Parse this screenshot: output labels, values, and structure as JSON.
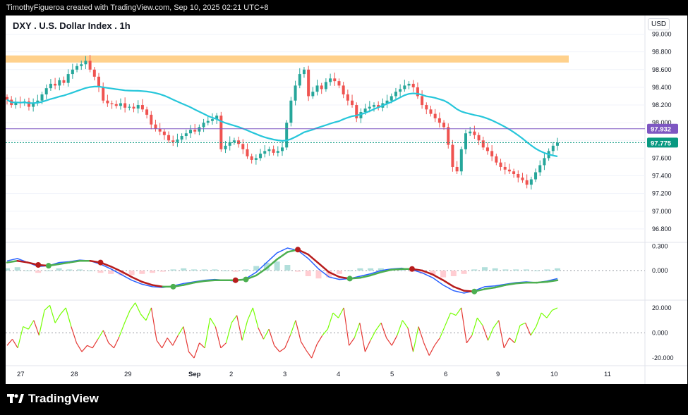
{
  "header": {
    "credit": "TimothyFigueroa created with TradingView.com, Sep 10, 2025 02:21 UTC+8"
  },
  "chart_title": "DXY . U.S. Dollar Index . 1h",
  "currency": "USD",
  "brand": "TradingView",
  "colors": {
    "up": "#26a69a",
    "down": "#ef5350",
    "ma": "#26c6da",
    "zone": "#ffcc80",
    "price_line": "#7e57c2",
    "last_price": "#089981",
    "macd_line": "#2962ff",
    "signal_fast": "#4caf50",
    "signal_slow": "#b71c1c",
    "osc_up": "#76ff03",
    "osc_down": "#e53935"
  },
  "chart_data": [
    {
      "type": "candlestick",
      "title": "DXY . U.S. Dollar Index . 1h",
      "xlabel": "",
      "ylabel": "USD",
      "ylim": [
        96.6,
        99.1
      ],
      "y_ticks": [
        "99.000",
        "98.800",
        "98.600",
        "98.400",
        "98.200",
        "98.000",
        "97.800",
        "97.600",
        "97.400",
        "97.200",
        "97.000",
        "96.800"
      ],
      "x_ticks": [
        "27",
        "28",
        "29",
        "Sep",
        "2",
        "3",
        "4",
        "5",
        "6",
        "9",
        "10",
        "11"
      ],
      "resistance_zone": [
        98.68,
        98.76
      ],
      "price_markers": [
        {
          "label": "97.932",
          "value": 97.932,
          "kind": "ma"
        },
        {
          "label": "97.775",
          "value": 97.775,
          "kind": "last"
        }
      ],
      "closes": [
        98.26,
        98.2,
        98.23,
        98.22,
        98.24,
        98.18,
        98.22,
        98.25,
        98.32,
        98.39,
        98.44,
        98.42,
        98.48,
        98.45,
        98.55,
        98.6,
        98.64,
        98.66,
        98.7,
        98.6,
        98.52,
        98.4,
        98.25,
        98.22,
        98.21,
        98.19,
        98.22,
        98.17,
        98.18,
        98.16,
        98.2,
        98.15,
        98.09,
        97.98,
        97.93,
        97.9,
        97.86,
        97.8,
        97.78,
        97.81,
        97.85,
        97.88,
        97.92,
        97.9,
        97.95,
        98.0,
        98.02,
        98.04,
        98.08,
        97.7,
        97.74,
        97.78,
        97.8,
        97.76,
        97.7,
        97.62,
        97.58,
        97.6,
        97.65,
        97.68,
        97.7,
        97.66,
        97.68,
        97.72,
        98.0,
        98.25,
        98.42,
        98.55,
        98.6,
        98.3,
        98.35,
        98.42,
        98.38,
        98.46,
        98.5,
        98.47,
        98.42,
        98.32,
        98.25,
        98.2,
        98.05,
        98.12,
        98.16,
        98.18,
        98.2,
        98.17,
        98.22,
        98.25,
        98.3,
        98.35,
        98.38,
        98.42,
        98.44,
        98.4,
        98.3,
        98.2,
        98.15,
        98.1,
        98.05,
        98.0,
        97.95,
        97.75,
        97.5,
        97.45,
        97.7,
        97.88,
        97.9,
        97.86,
        97.8,
        97.72,
        97.68,
        97.62,
        97.55,
        97.5,
        97.47,
        97.45,
        97.42,
        97.38,
        97.35,
        97.3,
        97.36,
        97.44,
        97.52,
        97.6,
        97.68,
        97.74,
        97.775
      ]
    },
    {
      "type": "line",
      "title": "MACD",
      "ylim": [
        -0.35,
        0.35
      ],
      "y_ticks": [
        "0.300",
        "0.000"
      ],
      "series": [
        {
          "name": "MACD",
          "values": [
            0.12,
            0.15,
            0.1,
            0.05,
            0.06,
            0.1,
            0.11,
            0.13,
            0.12,
            0.08,
            0.02,
            -0.05,
            -0.12,
            -0.17,
            -0.2,
            -0.21,
            -0.19,
            -0.16,
            -0.14,
            -0.12,
            -0.11,
            -0.12,
            -0.13,
            -0.1,
            -0.02,
            0.1,
            0.22,
            0.28,
            0.25,
            0.15,
            0.02,
            -0.08,
            -0.11,
            -0.1,
            -0.07,
            -0.04,
            0.0,
            0.02,
            0.03,
            0.01,
            -0.03,
            -0.09,
            -0.18,
            -0.25,
            -0.28,
            -0.25,
            -0.2,
            -0.19,
            -0.17,
            -0.15,
            -0.14,
            -0.15,
            -0.13,
            -0.1
          ]
        },
        {
          "name": "Signal",
          "values": [
            0.1,
            0.12,
            0.1,
            0.07,
            0.06,
            0.08,
            0.1,
            0.12,
            0.12,
            0.1,
            0.05,
            -0.01,
            -0.08,
            -0.14,
            -0.18,
            -0.2,
            -0.2,
            -0.18,
            -0.15,
            -0.13,
            -0.12,
            -0.12,
            -0.12,
            -0.11,
            -0.06,
            0.03,
            0.14,
            0.23,
            0.26,
            0.2,
            0.09,
            -0.02,
            -0.08,
            -0.1,
            -0.09,
            -0.06,
            -0.02,
            0.01,
            0.02,
            0.02,
            0.0,
            -0.05,
            -0.12,
            -0.2,
            -0.25,
            -0.26,
            -0.23,
            -0.21,
            -0.18,
            -0.16,
            -0.15,
            -0.15,
            -0.14,
            -0.12
          ]
        }
      ]
    },
    {
      "type": "line",
      "title": "Oscillator",
      "ylim": [
        -25,
        25
      ],
      "y_ticks": [
        "20.000",
        "0.000",
        "-20.000"
      ],
      "series": [
        {
          "name": "Oscillator",
          "values": [
            -10,
            -5,
            -12,
            5,
            3,
            10,
            -2,
            18,
            22,
            8,
            15,
            20,
            5,
            -8,
            -15,
            -10,
            -12,
            -5,
            2,
            -8,
            -12,
            -3,
            8,
            18,
            24,
            15,
            10,
            20,
            -6,
            -12,
            -4,
            -10,
            -2,
            5,
            -15,
            -20,
            -8,
            -12,
            12,
            5,
            -12,
            -8,
            8,
            14,
            -6,
            10,
            20,
            4,
            -5,
            3,
            -10,
            -15,
            -12,
            -2,
            10,
            -7,
            -14,
            -20,
            -9,
            -2,
            3,
            16,
            12,
            20,
            -10,
            -4,
            8,
            -15,
            -6,
            2,
            8,
            -4,
            -10,
            -2,
            10,
            4,
            -15,
            5,
            -8,
            -18,
            -10,
            -4,
            6,
            16,
            14,
            20,
            -8,
            -2,
            12,
            6,
            -6,
            4,
            10,
            -12,
            -4,
            -8,
            6,
            8,
            -2,
            5,
            16,
            12,
            18,
            20
          ]
        }
      ]
    }
  ]
}
